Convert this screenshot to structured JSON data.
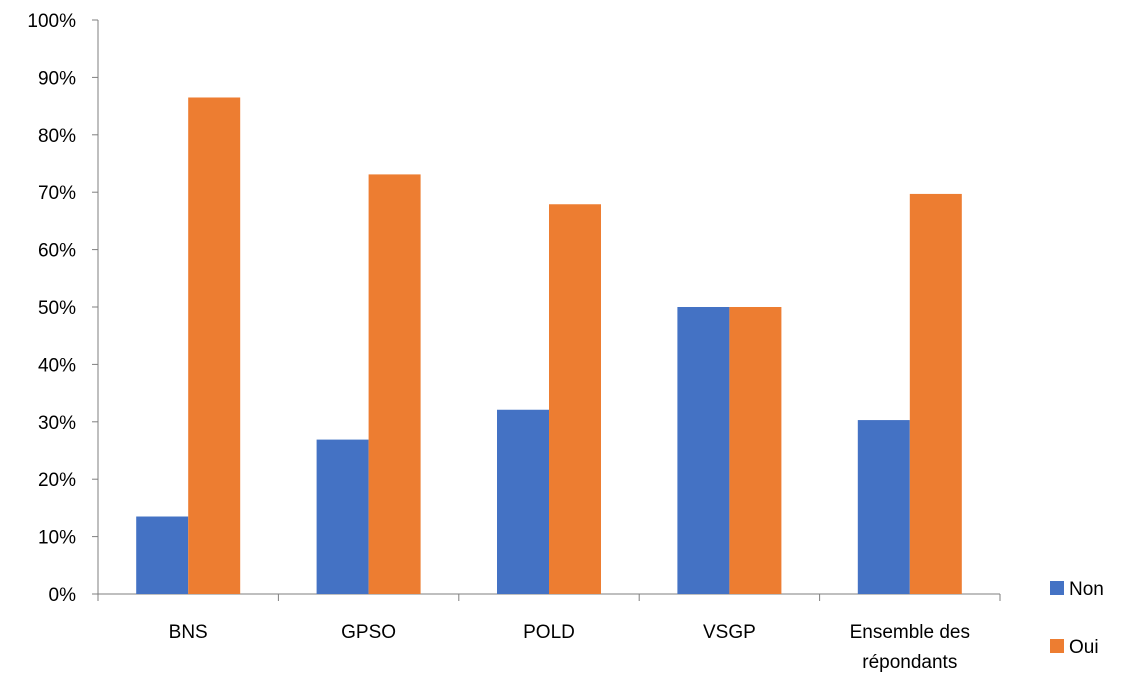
{
  "chart_data": {
    "type": "bar",
    "categories": [
      [
        "BNS"
      ],
      [
        "GPSO"
      ],
      [
        "POLD"
      ],
      [
        "VSGP"
      ],
      [
        "Ensemble des",
        "répondants"
      ]
    ],
    "series": [
      {
        "name": "Non",
        "color": "#4472C4",
        "values": [
          13.5,
          26.9,
          32.1,
          50.0,
          30.3
        ]
      },
      {
        "name": "Oui",
        "color": "#ED7D31",
        "values": [
          86.5,
          73.1,
          67.9,
          50.0,
          69.7
        ]
      }
    ],
    "y_ticks": [
      "0%",
      "10%",
      "20%",
      "30%",
      "40%",
      "50%",
      "60%",
      "70%",
      "80%",
      "90%",
      "100%"
    ],
    "ylim": [
      0,
      100
    ],
    "grid": false,
    "legend_position": "right",
    "title": "",
    "xlabel": "",
    "ylabel": ""
  }
}
